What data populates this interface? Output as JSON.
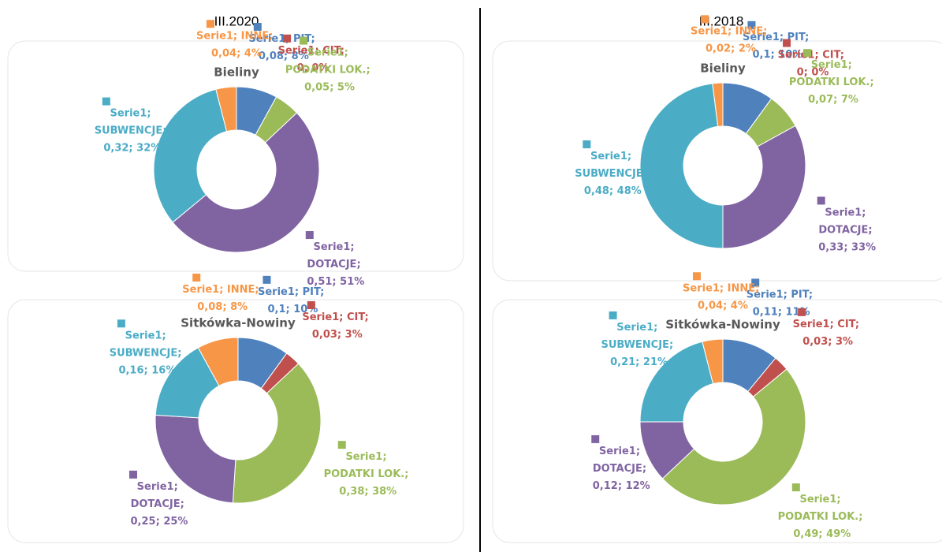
{
  "columns": [
    "III.2020",
    "III.2018"
  ],
  "chart_data": [
    {
      "type": "pie",
      "donut": true,
      "title": "Bieliny",
      "values": [
        0.08,
        0,
        0.05,
        0.51,
        0.32,
        0.04
      ],
      "value_labels": [
        "Serie1; PIT; 0,08; 8%",
        "Serie1; CIT; 0; 0%",
        "Serie1; PODATKI LOK.; 0,05; 5%",
        "Serie1; DOTACJE; 0,51; 51%",
        "Serie1; SUBWENCJE; 0,32; 32%",
        "Serie1; INNE; 0,04; 4%"
      ],
      "colors": [
        "#4f81bd",
        "#c0504d",
        "#9bbb59",
        "#8064a2",
        "#4bacc6",
        "#f79646"
      ]
    },
    {
      "type": "pie",
      "donut": true,
      "title": "Sitkówka-Nowiny",
      "values": [
        0.1,
        0.03,
        0.38,
        0.25,
        0.16,
        0.08
      ],
      "value_labels": [
        "Serie1; PIT; 0,1; 10%",
        "Serie1; CIT; 0,03; 3%",
        "Serie1; PODATKI LOK.; 0,38; 38%",
        "Serie1; DOTACJE; 0,25; 25%",
        "Serie1; SUBWENCJE; 0,16; 16%",
        "Serie1; INNE; 0,08; 8%"
      ],
      "colors": [
        "#4f81bd",
        "#c0504d",
        "#9bbb59",
        "#8064a2",
        "#4bacc6",
        "#f79646"
      ]
    },
    {
      "type": "pie",
      "donut": true,
      "title": "Bieliny",
      "values": [
        0.1,
        0,
        0.07,
        0.33,
        0.48,
        0.02
      ],
      "value_labels": [
        "Serie1; PIT; 0,1; 10%",
        "Serie1; CIT; 0; 0%",
        "Serie1; PODATKI LOK.; 0,07; 7%",
        "Serie1; DOTACJE; 0,33; 33%",
        "Serie1; SUBWENCJE; 0,48; 48%",
        "Serie1; INNE; 0,02; 2%"
      ],
      "colors": [
        "#4f81bd",
        "#c0504d",
        "#9bbb59",
        "#8064a2",
        "#4bacc6",
        "#f79646"
      ]
    },
    {
      "type": "pie",
      "donut": true,
      "title": "Sitkówka-Nowiny",
      "values": [
        0.11,
        0.03,
        0.49,
        0.12,
        0.21,
        0.04
      ],
      "value_labels": [
        "Serie1; PIT; 0,11; 11%",
        "Serie1; CIT; 0,03; 3%",
        "Serie1; PODATKI LOK.; 0,49; 49%",
        "Serie1; DOTACJE; 0,12; 12%",
        "Serie1; SUBWENCJE; 0,21; 21%",
        "Serie1; INNE; 0,04; 4%"
      ],
      "colors": [
        "#4f81bd",
        "#c0504d",
        "#9bbb59",
        "#8064a2",
        "#4bacc6",
        "#f79646"
      ]
    }
  ]
}
